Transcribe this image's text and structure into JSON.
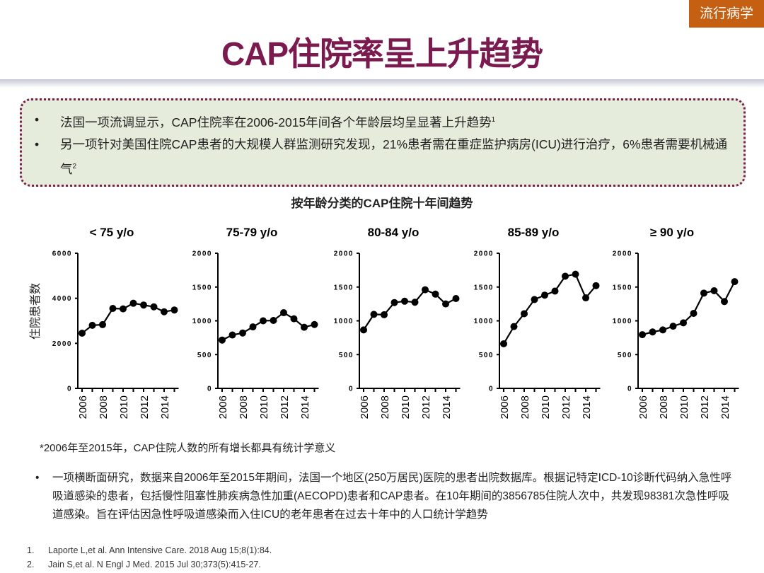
{
  "header": {
    "title": "CAP住院率呈上升趋势",
    "tag": "流行病学"
  },
  "bullets": [
    {
      "text": "法国一项流调显示，CAP住院率在2006-2015年间各个年龄层均呈显著上升趋势",
      "sup": "1"
    },
    {
      "text": "另一项针对美国住院CAP患者的大规模人群监测研究发现，21%患者需在重症监护病房(ICU)进行治疗，6%患者需要机械通气",
      "sup": "2"
    }
  ],
  "chart_title": "按年龄分类的CAP住院十年间趋势",
  "y_axis_label": "住院患者数",
  "chart_data": [
    {
      "type": "line",
      "title": "< 75 y/o",
      "x": [
        2006,
        2007,
        2008,
        2009,
        2010,
        2011,
        2012,
        2013,
        2014,
        2015
      ],
      "values": [
        2450,
        2800,
        2830,
        3550,
        3530,
        3780,
        3700,
        3620,
        3400,
        3480
      ],
      "ylim": [
        0,
        6000
      ],
      "yticks": [
        0,
        2000,
        4000,
        6000
      ],
      "xticklabels": [
        "2006",
        "2008",
        "2010",
        "2012",
        "2014"
      ]
    },
    {
      "type": "line",
      "title": "75-79 y/o",
      "x": [
        2006,
        2007,
        2008,
        2009,
        2010,
        2011,
        2012,
        2013,
        2014,
        2015
      ],
      "values": [
        715,
        790,
        820,
        910,
        1000,
        1005,
        1120,
        1030,
        905,
        945
      ],
      "ylim": [
        0,
        2000
      ],
      "yticks": [
        0,
        500,
        1000,
        1500,
        2000
      ],
      "xticklabels": [
        "2006",
        "2008",
        "2010",
        "2012",
        "2014"
      ]
    },
    {
      "type": "line",
      "title": "80-84 y/o",
      "x": [
        2006,
        2007,
        2008,
        2009,
        2010,
        2011,
        2012,
        2013,
        2014,
        2015
      ],
      "values": [
        865,
        1095,
        1090,
        1270,
        1290,
        1275,
        1460,
        1395,
        1250,
        1330
      ],
      "ylim": [
        0,
        2000
      ],
      "yticks": [
        0,
        500,
        1000,
        1500,
        2000
      ],
      "xticklabels": [
        "2006",
        "2008",
        "2010",
        "2012",
        "2014"
      ]
    },
    {
      "type": "line",
      "title": "85-89 y/o",
      "x": [
        2006,
        2007,
        2008,
        2009,
        2010,
        2011,
        2012,
        2013,
        2014,
        2015
      ],
      "values": [
        660,
        915,
        1105,
        1315,
        1380,
        1440,
        1660,
        1690,
        1340,
        1520
      ],
      "ylim": [
        0,
        2000
      ],
      "yticks": [
        0,
        500,
        1000,
        1500,
        2000
      ],
      "xticklabels": [
        "2006",
        "2008",
        "2010",
        "2012",
        "2014"
      ]
    },
    {
      "type": "line",
      "title": "≥ 90 y/o",
      "x": [
        2006,
        2007,
        2008,
        2009,
        2010,
        2011,
        2012,
        2013,
        2014,
        2015
      ],
      "values": [
        795,
        835,
        865,
        920,
        970,
        1110,
        1410,
        1445,
        1285,
        1580
      ],
      "ylim": [
        0,
        2000
      ],
      "yticks": [
        0,
        500,
        1000,
        1500,
        2000
      ],
      "xticklabels": [
        "2006",
        "2008",
        "2010",
        "2012",
        "2014"
      ]
    }
  ],
  "note": "*2006年至2015年，CAP住院人数的所有增长都具有统计学意义",
  "description": "一项横断面研究，数据来自2006年至2015年期间，法国一个地区(250万居民)医院的患者出院数据库。根据记特定ICD-10诊断代码纳入急性呼吸道感染的患者，包括慢性阻塞性肺疾病急性加重(AECOPD)患者和CAP患者。在10年期间的3856785住院人次中，共发现98381次急性呼吸道感染。旨在评估因急性呼吸道感染而入住ICU的老年患者在过去十年中的人口统计学趋势",
  "references": [
    {
      "n": "1.",
      "text": "Laporte L,et al. Ann Intensive Care. 2018 Aug 15;8(1):84."
    },
    {
      "n": "2.",
      "text": "Jain S,et al. N Engl J Med. 2015 Jul 30;373(5):415-27."
    }
  ],
  "colors": {
    "title": "#7a1a4e",
    "tag": "#c55f12",
    "box_bg": "#e6ecdb",
    "box_border": "#7a2050"
  }
}
